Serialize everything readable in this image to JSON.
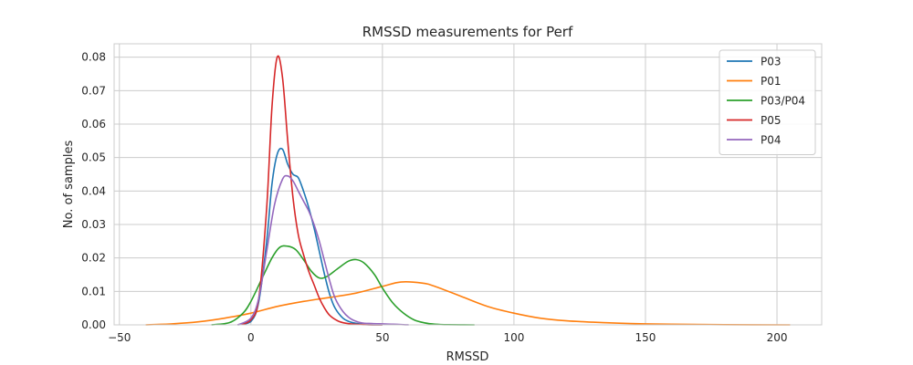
{
  "chart_data": {
    "type": "line",
    "title": "RMSSD measurements for Perf",
    "xlabel": "RMSSD",
    "ylabel": "No. of samples",
    "xlim": [
      -52,
      217
    ],
    "ylim": [
      0,
      0.084
    ],
    "xticks": [
      -50,
      0,
      50,
      100,
      150,
      200
    ],
    "xtick_labels": [
      "−50",
      "0",
      "50",
      "100",
      "150",
      "200"
    ],
    "yticks": [
      0.0,
      0.01,
      0.02,
      0.03,
      0.04,
      0.05,
      0.06,
      0.07,
      0.08
    ],
    "ytick_labels": [
      "0.00",
      "0.01",
      "0.02",
      "0.03",
      "0.04",
      "0.05",
      "0.06",
      "0.07",
      "0.08"
    ],
    "grid": true,
    "legend_position": "top-right",
    "series": [
      {
        "name": "P03",
        "color": "#1f77b4",
        "x": [
          -5,
          0,
          3,
          6,
          8,
          10,
          12,
          14,
          16,
          18,
          20,
          22,
          24,
          26,
          28,
          30,
          32,
          35,
          38,
          42,
          46,
          50
        ],
        "y": [
          0,
          0.001,
          0.007,
          0.025,
          0.042,
          0.051,
          0.0525,
          0.048,
          0.045,
          0.044,
          0.04,
          0.035,
          0.029,
          0.022,
          0.015,
          0.009,
          0.005,
          0.002,
          0.0008,
          0.0002,
          3e-05,
          0
        ]
      },
      {
        "name": "P01",
        "color": "#ff7f0e",
        "x": [
          -40,
          -30,
          -20,
          -10,
          0,
          10,
          20,
          30,
          40,
          50,
          57,
          65,
          70,
          80,
          90,
          100,
          110,
          120,
          130,
          140,
          150,
          160,
          180,
          205
        ],
        "y": [
          0,
          0.0003,
          0.0009,
          0.002,
          0.0035,
          0.0055,
          0.007,
          0.0082,
          0.0095,
          0.0115,
          0.0128,
          0.0125,
          0.0115,
          0.0085,
          0.0055,
          0.0035,
          0.002,
          0.0012,
          0.0008,
          0.0005,
          0.0003,
          0.0002,
          5e-05,
          0
        ]
      },
      {
        "name": "P03/P04",
        "color": "#2ca02c",
        "x": [
          -15,
          -8,
          -3,
          0,
          4,
          8,
          11,
          14,
          17,
          20,
          23,
          26,
          29,
          33,
          37,
          40,
          43,
          47,
          50,
          54,
          58,
          62,
          66,
          70,
          75,
          85
        ],
        "y": [
          0,
          0.0007,
          0.0035,
          0.007,
          0.0135,
          0.02,
          0.0232,
          0.0235,
          0.0225,
          0.0195,
          0.016,
          0.014,
          0.0145,
          0.0168,
          0.019,
          0.0195,
          0.0185,
          0.015,
          0.011,
          0.0065,
          0.0035,
          0.0015,
          0.0006,
          0.0002,
          5e-05,
          0
        ]
      },
      {
        "name": "P05",
        "color": "#d62728",
        "x": [
          -5,
          0,
          3,
          6,
          8,
          10,
          12,
          14,
          16,
          18,
          20,
          22,
          24,
          26,
          28,
          30,
          33,
          36,
          40,
          45,
          50
        ],
        "y": [
          0,
          0.0015,
          0.008,
          0.035,
          0.065,
          0.08,
          0.074,
          0.055,
          0.038,
          0.027,
          0.021,
          0.016,
          0.012,
          0.008,
          0.005,
          0.0028,
          0.0012,
          0.0005,
          0.00015,
          3e-05,
          0
        ]
      },
      {
        "name": "P04",
        "color": "#9467bd",
        "x": [
          -5,
          0,
          3,
          6,
          9,
          12,
          14,
          16,
          18,
          20,
          22,
          24,
          26,
          28,
          30,
          32,
          35,
          38,
          42,
          46,
          50,
          54,
          58,
          60
        ],
        "y": [
          0,
          0.002,
          0.008,
          0.022,
          0.036,
          0.0435,
          0.0445,
          0.043,
          0.04,
          0.037,
          0.034,
          0.03,
          0.025,
          0.019,
          0.013,
          0.008,
          0.004,
          0.0018,
          0.0006,
          0.0004,
          0.0003,
          0.0002,
          5e-05,
          0
        ]
      }
    ]
  }
}
